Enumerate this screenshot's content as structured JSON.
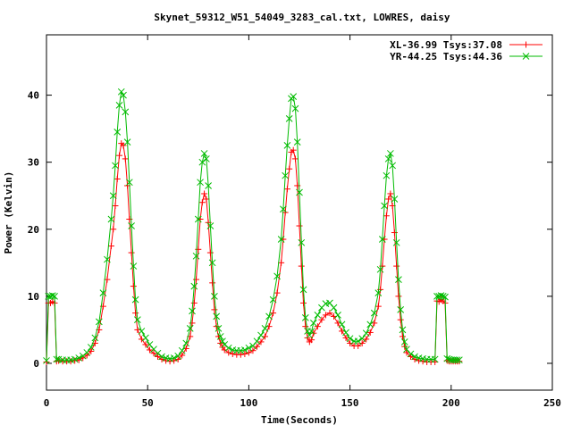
{
  "chart_data": {
    "type": "line",
    "title": "Skynet_59312_W51_54049_3283_cal.txt, LOWRES, daisy",
    "xlabel": "Time(Seconds)",
    "ylabel": "Power (Kelvin)",
    "xlim": [
      0,
      250
    ],
    "ylim": [
      -4,
      49
    ],
    "xticks": [
      "0",
      "50",
      "100",
      "150",
      "200",
      "250"
    ],
    "yticks": [
      "0",
      "10",
      "20",
      "30",
      "40"
    ],
    "grid": false,
    "legend_position": "top-right",
    "series": [
      {
        "name": "XL-36.99 Tsys:37.08",
        "color": "#ff0000",
        "marker": "plus",
        "x": [
          0,
          1,
          2,
          3,
          4,
          5,
          6,
          8,
          10,
          12,
          14,
          16,
          18,
          20,
          22,
          24,
          26,
          28,
          30,
          32,
          33,
          34,
          35,
          36,
          37,
          38,
          39,
          40,
          41,
          42,
          43,
          44,
          45,
          47,
          49,
          51,
          53,
          55,
          57,
          59,
          61,
          63,
          65,
          67,
          69,
          71,
          72,
          73,
          74,
          75,
          76,
          77,
          78,
          79,
          80,
          81,
          82,
          83,
          84,
          85,
          86,
          87,
          88,
          90,
          92,
          94,
          96,
          98,
          100,
          102,
          104,
          106,
          108,
          110,
          112,
          114,
          116,
          117,
          118,
          119,
          120,
          121,
          122,
          123,
          124,
          125,
          126,
          127,
          128,
          129,
          130,
          131,
          132,
          134,
          136,
          138,
          140,
          142,
          144,
          146,
          148,
          150,
          152,
          154,
          156,
          158,
          160,
          162,
          164,
          165,
          166,
          167,
          168,
          169,
          170,
          171,
          172,
          173,
          174,
          175,
          176,
          177,
          178,
          180,
          182,
          184,
          186,
          188,
          190,
          192,
          193,
          194,
          195,
          196,
          197,
          198,
          199,
          200,
          201,
          202,
          203,
          204
        ],
        "y": [
          0.2,
          9.0,
          9.0,
          9.2,
          9.0,
          0.3,
          0.4,
          0.3,
          0.3,
          0.3,
          0.4,
          0.5,
          0.8,
          1.2,
          1.8,
          3.0,
          5.0,
          8.5,
          12.5,
          17.5,
          20.0,
          23.5,
          27.5,
          31.0,
          32.8,
          32.5,
          30.5,
          26.5,
          21.5,
          16.5,
          11.5,
          7.5,
          5.0,
          3.6,
          2.8,
          2.0,
          1.5,
          1.0,
          0.6,
          0.4,
          0.3,
          0.4,
          0.6,
          1.2,
          2.2,
          4.0,
          6.0,
          9.0,
          12.5,
          17.0,
          21.5,
          24.0,
          25.3,
          24.5,
          21.0,
          16.5,
          12.0,
          8.0,
          5.5,
          4.0,
          3.0,
          2.4,
          2.0,
          1.6,
          1.4,
          1.3,
          1.3,
          1.4,
          1.6,
          1.9,
          2.5,
          3.2,
          4.0,
          5.5,
          7.5,
          10.5,
          15.0,
          18.5,
          22.5,
          26.0,
          29.0,
          31.5,
          31.8,
          30.5,
          26.5,
          20.5,
          14.5,
          9.0,
          5.5,
          3.8,
          3.2,
          3.5,
          4.5,
          5.5,
          6.5,
          7.2,
          7.5,
          7.0,
          6.0,
          4.8,
          3.8,
          3.0,
          2.6,
          2.6,
          3.0,
          3.6,
          4.6,
          6.0,
          8.5,
          11.0,
          14.5,
          18.5,
          22.0,
          24.5,
          25.3,
          23.5,
          19.5,
          14.5,
          10.0,
          6.5,
          4.0,
          2.5,
          1.6,
          1.0,
          0.6,
          0.4,
          0.3,
          0.2,
          0.2,
          0.2,
          9.3,
          9.2,
          9.5,
          9.3,
          9.0,
          0.4,
          0.3,
          0.3,
          0.3,
          0.3,
          0.3,
          0.3
        ]
      },
      {
        "name": "YR-44.25 Tsys:44.36",
        "color": "#00bb00",
        "marker": "cross",
        "x": [
          0,
          1,
          2,
          3,
          4,
          5,
          6,
          8,
          10,
          12,
          14,
          16,
          18,
          20,
          22,
          24,
          26,
          28,
          30,
          32,
          33,
          34,
          35,
          36,
          37,
          38,
          39,
          40,
          41,
          42,
          43,
          44,
          45,
          47,
          49,
          51,
          53,
          55,
          57,
          59,
          61,
          63,
          65,
          67,
          69,
          71,
          72,
          73,
          74,
          75,
          76,
          77,
          78,
          79,
          80,
          81,
          82,
          83,
          84,
          85,
          86,
          87,
          88,
          90,
          92,
          94,
          96,
          98,
          100,
          102,
          104,
          106,
          108,
          110,
          112,
          114,
          116,
          117,
          118,
          119,
          120,
          121,
          122,
          123,
          124,
          125,
          126,
          127,
          128,
          129,
          130,
          131,
          132,
          134,
          136,
          138,
          140,
          142,
          144,
          146,
          148,
          150,
          152,
          154,
          156,
          158,
          160,
          162,
          164,
          165,
          166,
          167,
          168,
          169,
          170,
          171,
          172,
          173,
          174,
          175,
          176,
          177,
          178,
          180,
          182,
          184,
          186,
          188,
          190,
          192,
          193,
          194,
          195,
          196,
          197,
          198,
          199,
          200,
          201,
          202,
          203,
          204
        ],
        "y": [
          0.4,
          10.0,
          10.0,
          10.1,
          10.0,
          0.6,
          0.6,
          0.5,
          0.5,
          0.5,
          0.6,
          0.8,
          1.1,
          1.6,
          2.4,
          3.8,
          6.2,
          10.5,
          15.5,
          21.5,
          25.0,
          29.5,
          34.5,
          38.5,
          40.5,
          40.0,
          37.5,
          33.0,
          27.0,
          20.5,
          14.5,
          9.5,
          6.5,
          4.8,
          3.8,
          2.8,
          2.1,
          1.5,
          1.0,
          0.8,
          0.7,
          0.8,
          1.1,
          1.9,
          3.0,
          5.2,
          7.8,
          11.5,
          16.0,
          21.5,
          27.0,
          30.0,
          31.3,
          30.5,
          26.5,
          20.5,
          15.0,
          10.0,
          7.0,
          5.2,
          4.0,
          3.3,
          2.8,
          2.3,
          2.0,
          1.9,
          1.9,
          2.0,
          2.3,
          2.6,
          3.3,
          4.2,
          5.2,
          7.0,
          9.5,
          13.0,
          18.5,
          23.0,
          28.0,
          32.5,
          36.5,
          39.5,
          39.8,
          38.0,
          33.0,
          25.5,
          18.0,
          11.0,
          6.8,
          4.8,
          4.2,
          4.8,
          6.0,
          7.2,
          8.3,
          8.9,
          9.0,
          8.3,
          7.2,
          5.8,
          4.6,
          3.7,
          3.3,
          3.3,
          3.7,
          4.5,
          5.8,
          7.5,
          10.5,
          14.0,
          18.5,
          23.5,
          28.0,
          30.5,
          31.3,
          29.5,
          24.5,
          18.0,
          12.5,
          8.0,
          5.0,
          3.2,
          2.1,
          1.4,
          1.0,
          0.8,
          0.7,
          0.6,
          0.6,
          0.6,
          10.0,
          10.0,
          10.1,
          10.0,
          9.9,
          0.7,
          0.6,
          0.5,
          0.5,
          0.5,
          0.5,
          0.5
        ]
      }
    ]
  }
}
